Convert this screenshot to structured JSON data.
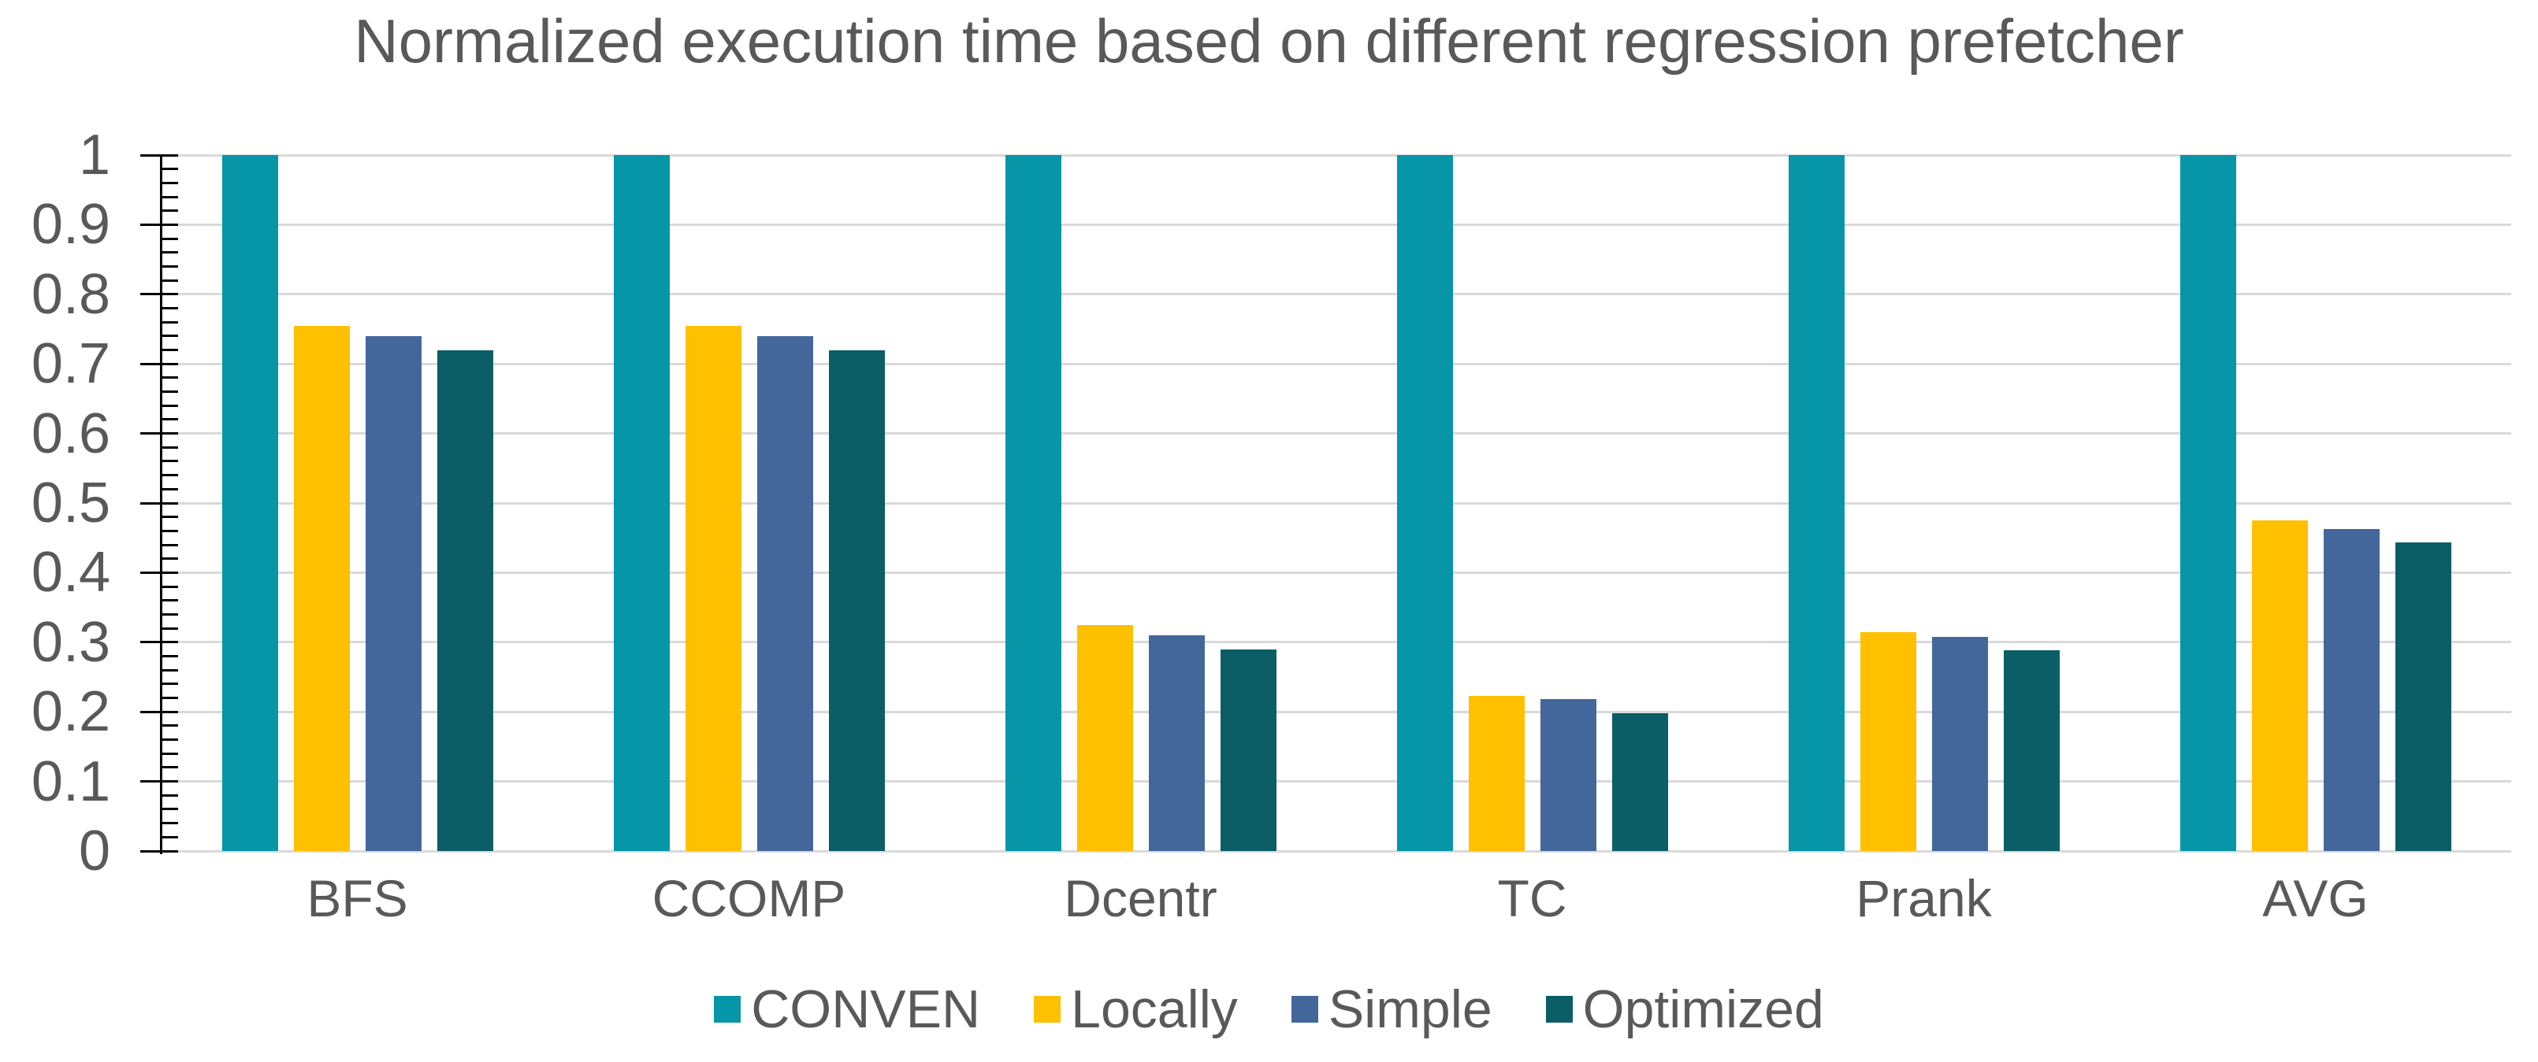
{
  "chart_data": {
    "type": "bar",
    "title": "Normalized execution time based on different regression prefetcher",
    "categories": [
      "BFS",
      "CCOMP",
      "Dcentr",
      "TC",
      "Prank",
      "AVG"
    ],
    "series": [
      {
        "name": "CONVEN",
        "color": "#0795A8",
        "values": [
          1,
          1,
          1,
          1,
          1,
          1
        ]
      },
      {
        "name": "Locally",
        "color": "#FFC000",
        "values": [
          0.755,
          0.755,
          0.325,
          0.223,
          0.315,
          0.475
        ]
      },
      {
        "name": "Simple",
        "color": "#44679B",
        "values": [
          0.74,
          0.74,
          0.31,
          0.218,
          0.308,
          0.463
        ]
      },
      {
        "name": "Optimized",
        "color": "#0B5D66",
        "values": [
          0.72,
          0.72,
          0.29,
          0.198,
          0.288,
          0.443
        ]
      }
    ],
    "xlabel": "",
    "ylabel": "",
    "ylim": [
      0,
      1
    ],
    "ytick_step": 0.1,
    "ytick_labels": [
      "0",
      "0.1",
      "0.2",
      "0.3",
      "0.4",
      "0.5",
      "0.6",
      "0.7",
      "0.8",
      "0.9",
      "1"
    ],
    "minor_tick_step": 0.02,
    "grid": true,
    "legend_position": "bottom",
    "colors": {
      "text": "#595959",
      "gridline": "#D9D9D9",
      "axis": "#000000",
      "background": "#FFFFFF"
    }
  }
}
